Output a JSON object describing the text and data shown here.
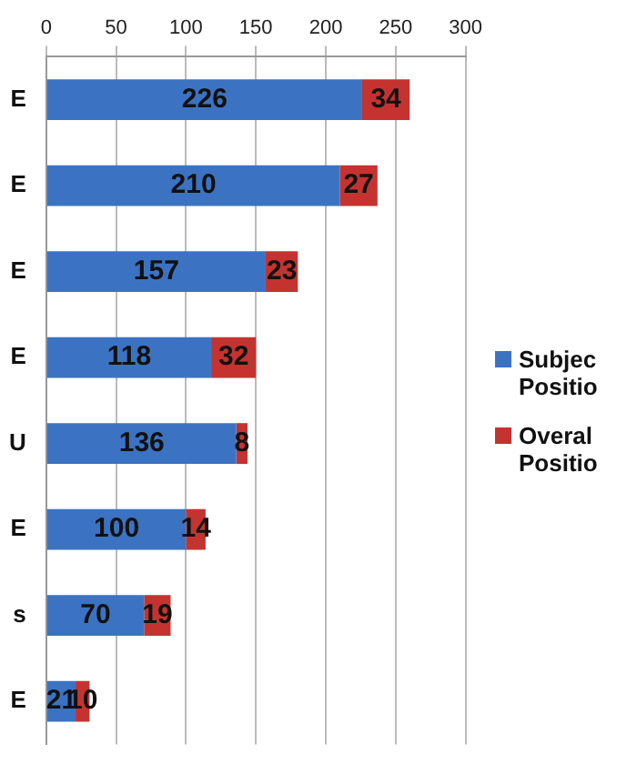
{
  "chart_data": {
    "type": "bar",
    "orientation": "horizontal",
    "stacked": true,
    "categories": [
      "E",
      "E",
      "E",
      "E",
      "U",
      "E",
      "s",
      "E"
    ],
    "series": [
      {
        "name": "Subjec Positio",
        "color": "#3b73c2",
        "values": [
          226,
          210,
          157,
          118,
          136,
          100,
          70,
          21
        ]
      },
      {
        "name": "Overal Positio",
        "color": "#c53330",
        "values": [
          34,
          27,
          23,
          32,
          8,
          14,
          19,
          10
        ]
      }
    ],
    "xlim": [
      0,
      300
    ],
    "xticks": [
      0,
      50,
      100,
      150,
      200,
      250,
      300
    ],
    "grid": "x",
    "legend": "right",
    "data_labels": true
  }
}
